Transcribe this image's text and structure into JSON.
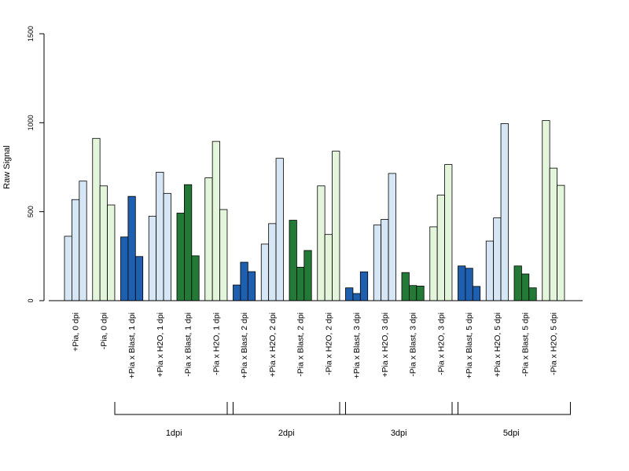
{
  "chart_data": {
    "type": "bar",
    "title": "",
    "xlabel": "",
    "ylabel": "Raw Signal",
    "ylim": [
      0,
      1500
    ],
    "yticks": [
      0,
      500,
      1000,
      1500
    ],
    "grid": false,
    "legend": "none",
    "categories": [
      "+Pia, 0 dpi",
      "-Pia, 0 dpi",
      "+Pia x Blast, 1 dpi",
      "+Pia x H2O, 1 dpi",
      "-Pia x Blast, 1 dpi",
      "-Pia x H2O, 1 dpi",
      "+Pia x Blast, 2 dpi",
      "+Pia x H2O, 2 dpi",
      "-Pia x Blast, 2 dpi",
      "-Pia x H2O, 2 dpi",
      "+Pia x Blast, 3 dpi",
      "+Pia x H2O, 3 dpi",
      "-Pia x Blast, 3 dpi",
      "-Pia x H2O, 3 dpi",
      "+Pia x Blast, 5 dpi",
      "+Pia x H2O, 5 dpi",
      "-Pia x Blast, 5 dpi",
      "-Pia x H2O, 5 dpi"
    ],
    "category_colors": [
      "#d6e6f5",
      "#e3f5da",
      "#1f5faf",
      "#d6e6f5",
      "#237a37",
      "#e3f5da",
      "#1f5faf",
      "#d6e6f5",
      "#237a37",
      "#e3f5da",
      "#1f5faf",
      "#d6e6f5",
      "#237a37",
      "#e3f5da",
      "#1f5faf",
      "#d6e6f5",
      "#237a37",
      "#e3f5da"
    ],
    "values": [
      [
        362,
        568,
        672
      ],
      [
        912,
        645,
        538
      ],
      [
        358,
        586,
        248
      ],
      [
        475,
        722,
        603
      ],
      [
        492,
        652,
        252
      ],
      [
        690,
        895,
        512
      ],
      [
        88,
        216,
        163
      ],
      [
        318,
        433,
        800
      ],
      [
        452,
        188,
        282
      ],
      [
        645,
        372,
        840
      ],
      [
        72,
        40,
        162
      ],
      [
        425,
        457,
        715
      ],
      [
        158,
        85,
        82
      ],
      [
        415,
        593,
        765
      ],
      [
        195,
        182,
        80
      ],
      [
        335,
        465,
        995
      ],
      [
        195,
        150,
        72
      ],
      [
        1012,
        745,
        648
      ]
    ],
    "groups": [
      {
        "label": "1dpi",
        "from": 2,
        "to": 5
      },
      {
        "label": "2dpi",
        "from": 6,
        "to": 9
      },
      {
        "label": "3dpi",
        "from": 10,
        "to": 13
      },
      {
        "label": "5dpi",
        "from": 14,
        "to": 17
      }
    ]
  },
  "colors": {
    "axis": "#000000",
    "bar_outline": "#000000"
  }
}
